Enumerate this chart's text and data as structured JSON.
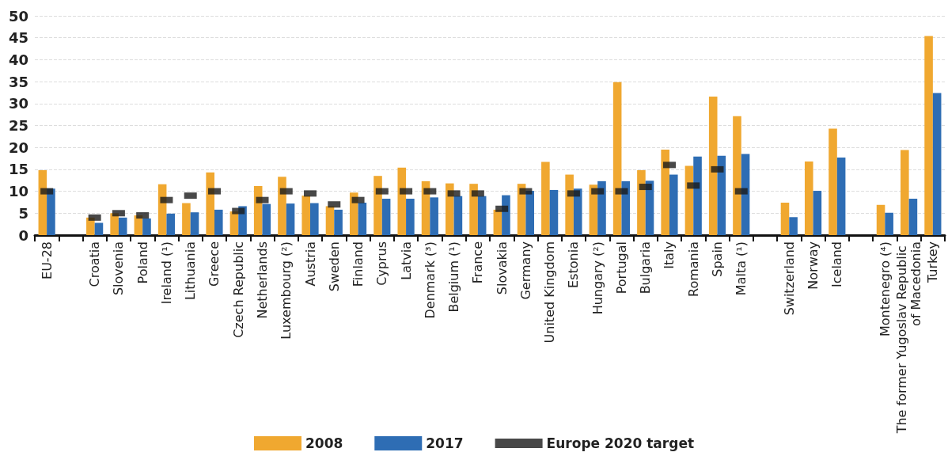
{
  "chart_data": {
    "type": "bar",
    "categories": [
      "EU-28",
      null,
      "Croatia",
      "Slovenia",
      "Poland",
      "Ireland (¹)",
      "Lithuania",
      "Greece",
      "Czech Republic",
      "Netherlands",
      "Luxembourg (²)",
      "Austria",
      "Sweden",
      "Finland",
      "Cyprus",
      "Latvia",
      "Denmark (³)",
      "Belgium (¹)",
      "France",
      "Slovakia",
      "Germany",
      "United Kingdom",
      "Estonia",
      "Hungary (²)",
      "Portugal",
      "Bulgaria",
      "Italy",
      "Romania",
      "Spain",
      "Malta (¹)",
      null,
      "Switzerland",
      "Norway",
      "Iceland",
      null,
      "Montenegro (⁴)",
      "The former Yugoslav Republic of Macedonia",
      "Turkey"
    ],
    "series": [
      {
        "name": "2008",
        "type": "bar",
        "color": "#f0a830",
        "values": [
          14.8,
          null,
          4.0,
          5.0,
          4.5,
          11.6,
          7.3,
          14.3,
          5.4,
          11.2,
          13.3,
          9.0,
          6.6,
          9.7,
          13.5,
          15.4,
          12.3,
          11.8,
          11.7,
          5.8,
          11.7,
          16.7,
          13.8,
          11.5,
          34.9,
          14.8,
          19.5,
          15.8,
          31.6,
          27.1,
          null,
          7.4,
          16.8,
          24.3,
          null,
          6.9,
          19.4,
          45.4
        ]
      },
      {
        "name": "2017",
        "type": "bar",
        "color": "#2e6db4",
        "values": [
          10.6,
          null,
          2.8,
          4.0,
          3.8,
          4.9,
          5.2,
          5.8,
          6.6,
          7.1,
          7.2,
          7.3,
          5.8,
          7.4,
          8.3,
          8.3,
          8.6,
          8.9,
          8.9,
          9.1,
          10.1,
          10.3,
          10.6,
          12.3,
          12.3,
          12.4,
          13.8,
          17.9,
          18.1,
          18.5,
          null,
          4.1,
          10.1,
          17.7,
          null,
          5.1,
          8.3,
          32.4
        ]
      },
      {
        "name": "Europe 2020 target",
        "type": "scatter",
        "marker": "square",
        "color": "#1a1a1a",
        "values": [
          10,
          null,
          4,
          5,
          4.5,
          8,
          9,
          10,
          5.5,
          8,
          10,
          9.5,
          7,
          8,
          10,
          10,
          10,
          9.5,
          9.5,
          6,
          10,
          null,
          9.5,
          10,
          10,
          11,
          16,
          11.3,
          15,
          10,
          null,
          null,
          null,
          null,
          null,
          null,
          null,
          null
        ]
      }
    ],
    "ylim": [
      0,
      50
    ],
    "yticks": [
      0,
      5,
      10,
      15,
      20,
      25,
      30,
      35,
      40,
      45,
      50
    ],
    "grid": "y",
    "legend": "bottom"
  }
}
